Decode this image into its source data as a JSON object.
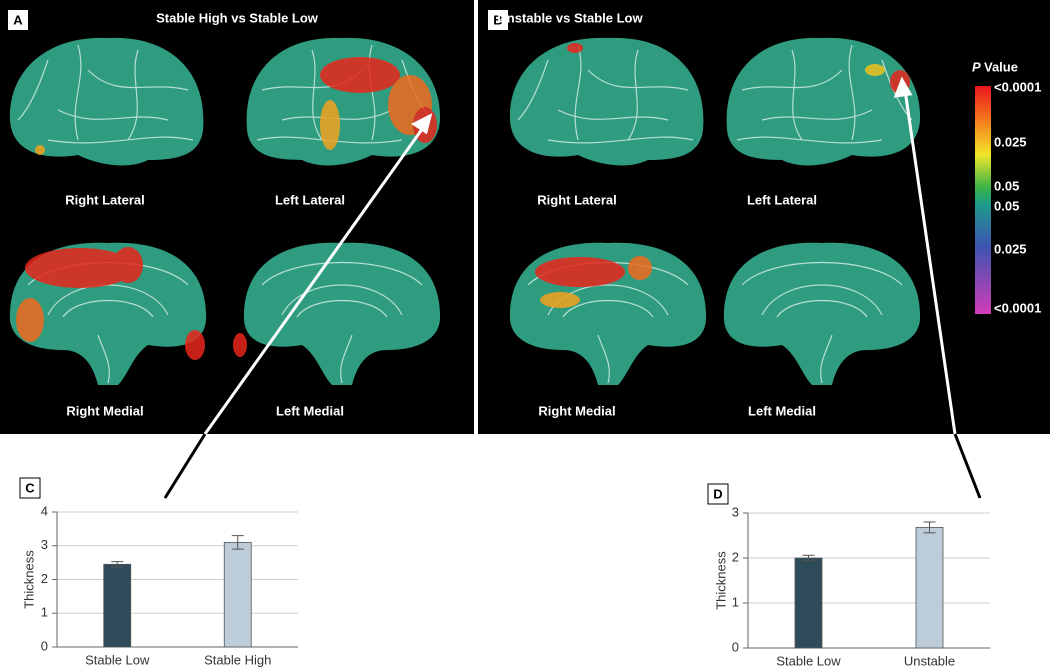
{
  "figure": {
    "panels": [
      {
        "label": "A",
        "title": "Stable High vs Stable Low",
        "views": [
          "Right Lateral",
          "Left Lateral",
          "Right Medial",
          "Left Medial"
        ]
      },
      {
        "label": "B",
        "title": "Unstable vs Stable Low",
        "views": [
          "Right Lateral",
          "Left Lateral",
          "Right Medial",
          "Left Medial"
        ]
      }
    ],
    "colorbar": {
      "title_italic": "P",
      "title": "Value",
      "labels": [
        "<0.0001",
        "0.025",
        "0.05",
        "0.05",
        "0.025",
        "<0.0001"
      ]
    }
  },
  "chart_data": [
    {
      "type": "bar",
      "panel": "C",
      "ylabel": "Thickness",
      "categories": [
        "Stable Low",
        "Stable High"
      ],
      "values": [
        2.45,
        3.1
      ],
      "errors": [
        0.08,
        0.2
      ],
      "colors": [
        "#2e4b59",
        "#bccdd9"
      ],
      "ylim": [
        0,
        4
      ],
      "yticks": [
        0,
        1,
        2,
        3,
        4
      ],
      "grid": true
    },
    {
      "type": "bar",
      "panel": "D",
      "ylabel": "Thickness",
      "categories": [
        "Stable Low",
        "Unstable"
      ],
      "values": [
        2.0,
        2.68
      ],
      "errors": [
        0.06,
        0.12
      ],
      "colors": [
        "#2e4b59",
        "#bccdd9"
      ],
      "ylim": [
        0,
        3
      ],
      "yticks": [
        0,
        1,
        2,
        3
      ],
      "grid": true
    }
  ]
}
